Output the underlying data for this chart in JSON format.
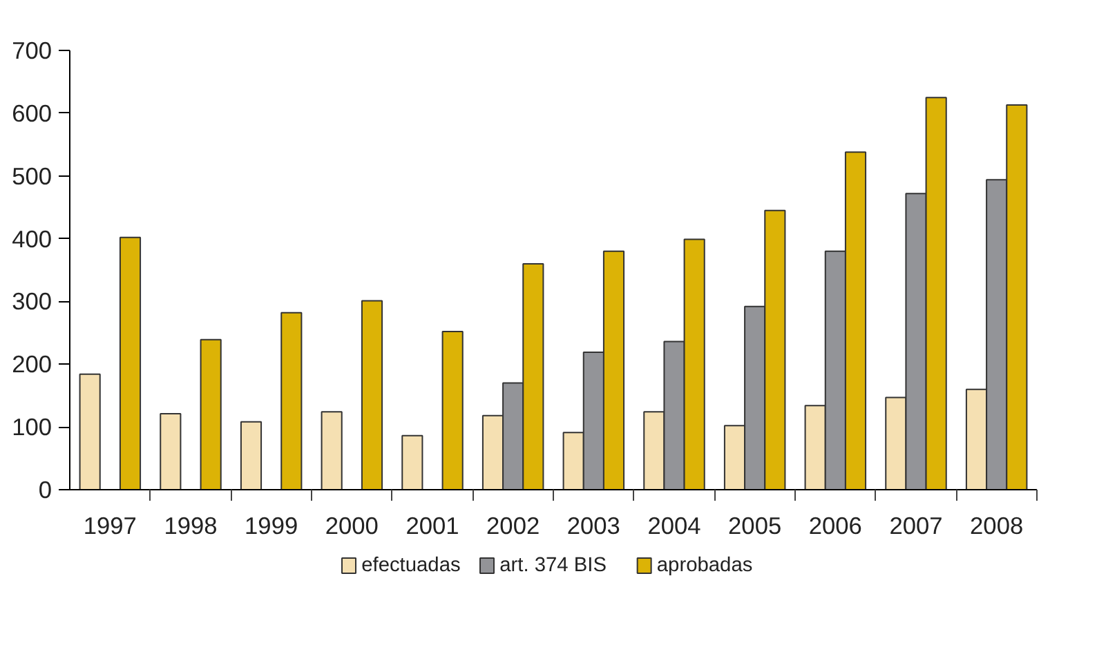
{
  "chart_data": {
    "type": "bar",
    "categories": [
      "1997",
      "1998",
      "1999",
      "2000",
      "2001",
      "2002",
      "2003",
      "2004",
      "2005",
      "2006",
      "2007",
      "2008"
    ],
    "series": [
      {
        "name": "efectuadas",
        "color": "#f5e0b2",
        "values": [
          184,
          121,
          108,
          124,
          86,
          118,
          91,
          124,
          102,
          134,
          147,
          160
        ]
      },
      {
        "name": "art. 374 BIS",
        "color": "#939498",
        "values": [
          null,
          null,
          null,
          null,
          null,
          170,
          219,
          236,
          292,
          380,
          472,
          494
        ]
      },
      {
        "name": "aprobadas",
        "color": "#dcb306",
        "values": [
          402,
          239,
          282,
          301,
          252,
          360,
          380,
          399,
          445,
          538,
          625,
          613
        ]
      }
    ],
    "ylim": [
      0,
      700
    ],
    "yticks": [
      0,
      100,
      200,
      300,
      400,
      500,
      600,
      700
    ],
    "grid": false,
    "legend": "bottom"
  }
}
